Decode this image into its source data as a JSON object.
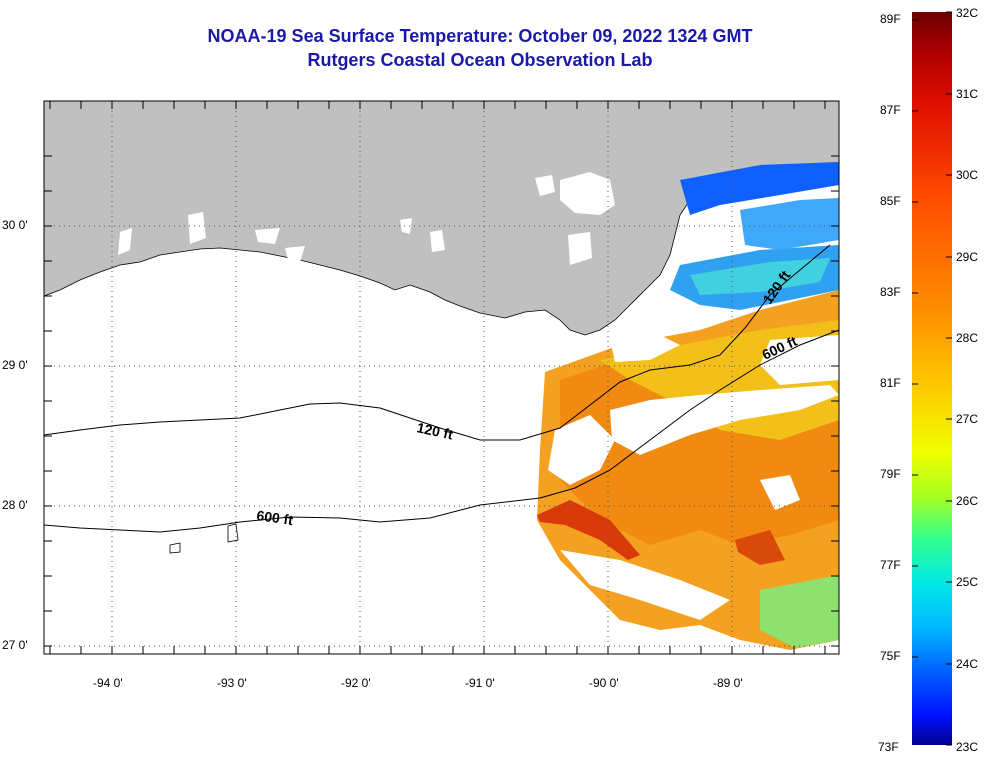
{
  "header": {
    "title_line1": "NOAA-19 Sea Surface Temperature:  October 09, 2022 1324 GMT",
    "title_line2": "Rutgers Coastal Ocean Observation Lab"
  },
  "map": {
    "lat_labels": [
      "30 0'",
      "29 0'",
      "28 0'",
      "27 0'"
    ],
    "lon_labels": [
      "-94 0'",
      "-93 0'",
      "-92 0'",
      "-91 0'",
      "-90 0'",
      "-89 0'"
    ],
    "contour_labels": [
      "120 ft",
      "600 ft",
      "120 ft",
      "600 ft"
    ],
    "land_color": "#c0c0c0"
  },
  "colorbar": {
    "fahrenheit_labels": [
      "89F",
      "87F",
      "85F",
      "83F",
      "81F",
      "79F",
      "77F",
      "75F",
      "73F"
    ],
    "celsius_labels": [
      "32C",
      "31C",
      "30C",
      "29C",
      "28C",
      "27C",
      "26C",
      "25C",
      "24C",
      "23C"
    ]
  }
}
